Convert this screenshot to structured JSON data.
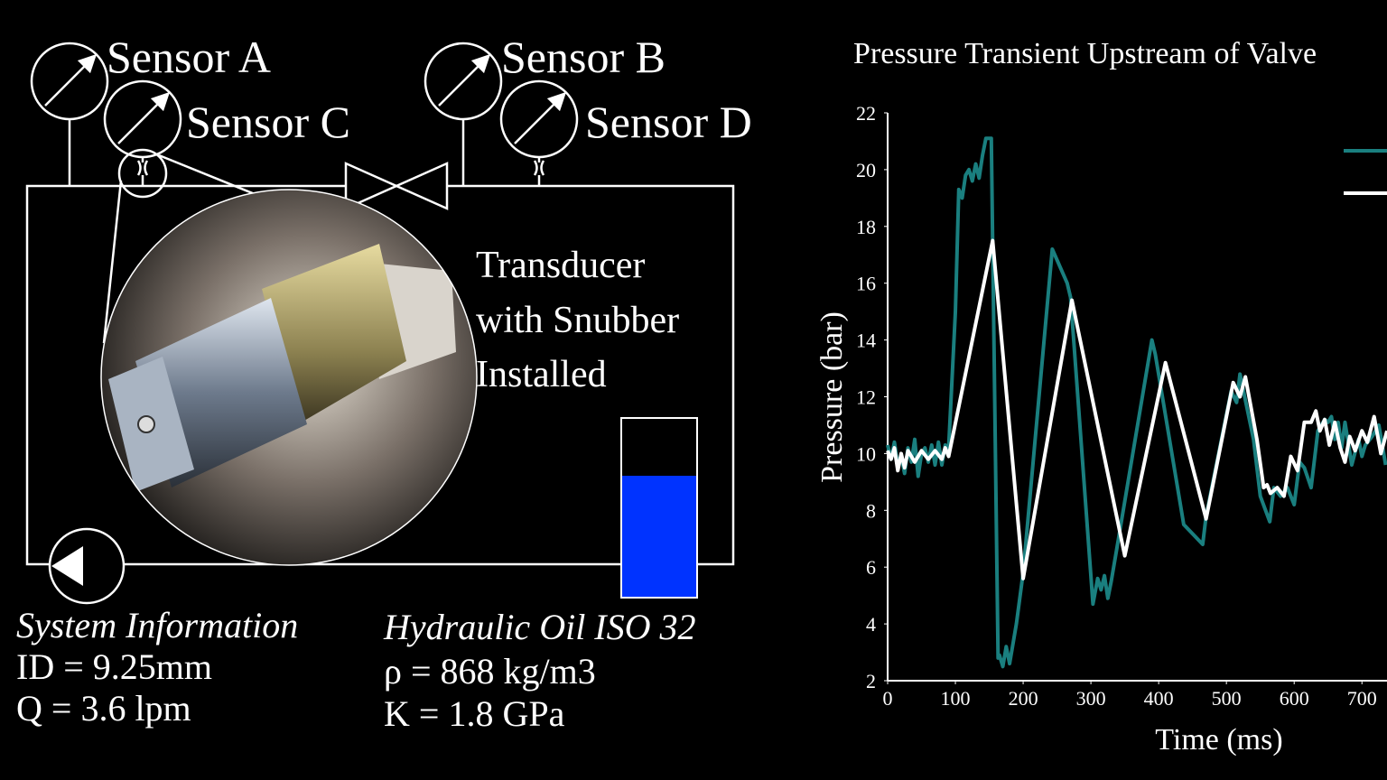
{
  "diagram": {
    "sensors": [
      "Sensor A",
      "Sensor B",
      "Sensor C",
      "Sensor D"
    ],
    "transducer_label": [
      "Transducer",
      "with Snubber",
      "Installed"
    ],
    "system_info": {
      "title": "System Information",
      "lines": [
        "ID = 9.25mm",
        "Q = 3.6 lpm"
      ]
    },
    "fluid_info": {
      "title": "Hydraulic Oil ISO 32",
      "lines": [
        "ρ = 868 kg/m3",
        "K = 1.8 GPa"
      ]
    }
  },
  "chart_data": {
    "type": "line",
    "title": "Pressure Transient Upstream of Valve",
    "x_label": "Time (ms)",
    "y_label": "Pressure (bar)",
    "xlim": [
      0,
      737
    ],
    "ylim": [
      2,
      22
    ],
    "xticks": [
      0,
      100,
      200,
      300,
      400,
      500,
      600,
      700
    ],
    "yticks": [
      2,
      4,
      6,
      8,
      10,
      12,
      14,
      16,
      18,
      20,
      22
    ],
    "series": [
      {
        "color": "#1a7f7f",
        "x": [
          0,
          5,
          10,
          15,
          20,
          25,
          30,
          35,
          40,
          45,
          50,
          55,
          60,
          65,
          70,
          75,
          80,
          85,
          90,
          100,
          105,
          110,
          115,
          120,
          125,
          130,
          135,
          140,
          145,
          153,
          163,
          165,
          170,
          175,
          180,
          190,
          200,
          243,
          265,
          270,
          303,
          310,
          315,
          320,
          325,
          330,
          340,
          390,
          395,
          437,
          465,
          470,
          507,
          515,
          520,
          540,
          550,
          564,
          570,
          580,
          590,
          600,
          608,
          615,
          625,
          635,
          645,
          650,
          655,
          660,
          665,
          670,
          675,
          685,
          695,
          700,
          705,
          715,
          725,
          735
        ],
        "values": [
          10.3,
          9.8,
          10.4,
          9.6,
          9.9,
          9.3,
          10.2,
          9.7,
          10.5,
          9.2,
          10,
          10.2,
          9.7,
          10.3,
          9.6,
          10.4,
          9.6,
          10.3,
          10.2,
          15,
          19.3,
          19,
          19.8,
          20,
          19.6,
          20.2,
          19.7,
          20.5,
          21.1,
          21.1,
          2.8,
          2.9,
          2.5,
          3.2,
          2.6,
          4,
          5.8,
          17.2,
          16,
          15.5,
          4.7,
          5.6,
          5.2,
          5.7,
          4.9,
          5.5,
          6.9,
          14,
          13.5,
          7.5,
          6.8,
          7.8,
          12.2,
          11.8,
          12.8,
          10.5,
          8.5,
          7.6,
          8.8,
          8.5,
          8.8,
          8.2,
          9.7,
          9.5,
          8.8,
          10.8,
          11.2,
          11.1,
          11.3,
          10.5,
          11.1,
          10.2,
          11.1,
          9.6,
          10.5,
          9.9,
          10.3,
          10.6,
          11,
          9.6
        ]
      },
      {
        "color": "#ffffff",
        "x": [
          0,
          5,
          10,
          15,
          20,
          25,
          30,
          40,
          50,
          60,
          70,
          80,
          85,
          90,
          155,
          200,
          272,
          350,
          410,
          470,
          510,
          520,
          528,
          545,
          555,
          560,
          565,
          575,
          585,
          595,
          605,
          615,
          625,
          632,
          638,
          645,
          652,
          660,
          668,
          675,
          682,
          690,
          700,
          708,
          718,
          728,
          737
        ],
        "values": [
          10.1,
          9.8,
          10.2,
          9.4,
          10,
          9.5,
          10.1,
          9.7,
          10.1,
          9.8,
          10.1,
          9.8,
          10.2,
          9.9,
          17.5,
          5.6,
          15.4,
          6.4,
          13.2,
          7.7,
          12.5,
          12,
          12.7,
          10.5,
          8.8,
          8.9,
          8.6,
          8.8,
          8.5,
          9.9,
          9.4,
          11.1,
          11.1,
          11.5,
          10.8,
          11.2,
          10.3,
          11.1,
          10.2,
          9.7,
          10.6,
          10.1,
          10.8,
          10.4,
          11.3,
          10,
          10.8
        ]
      }
    ]
  }
}
